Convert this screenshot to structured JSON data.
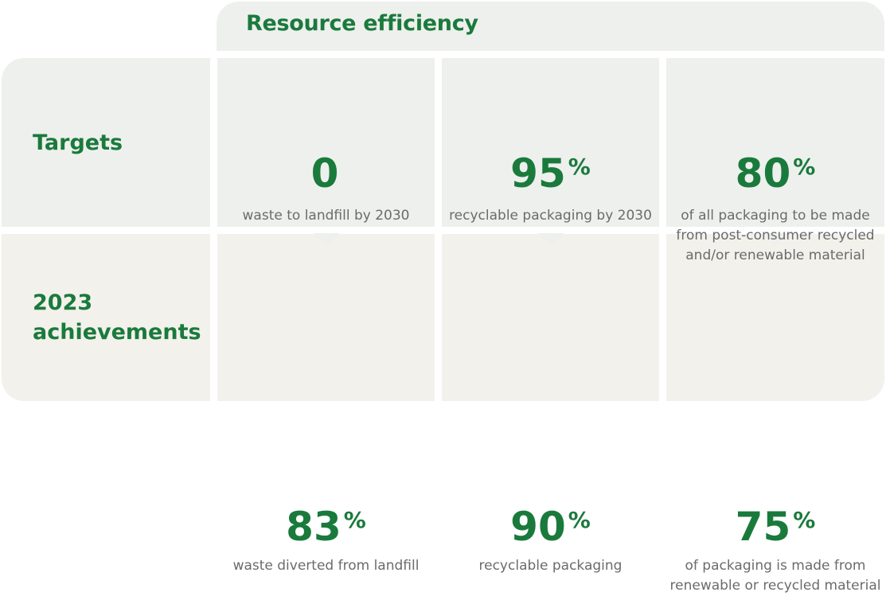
{
  "header": {
    "title": "Resource efficiency"
  },
  "rows": {
    "targets_label": "Targets",
    "achievements_label_line1": "2023",
    "achievements_label_line2": "achievements"
  },
  "targets": [
    {
      "value": "0",
      "unit": "",
      "description": "waste to landfill by 2030"
    },
    {
      "value": "95",
      "unit": "%",
      "description": "recyclable packaging by 2030"
    },
    {
      "value": "80",
      "unit": "%",
      "description": "of all packaging to be made from post-consumer recycled and/or renewable material"
    }
  ],
  "achievements": [
    {
      "value": "83",
      "unit": "%",
      "description": "waste diverted from landfill"
    },
    {
      "value": "90",
      "unit": "%",
      "description": "recyclable packaging"
    },
    {
      "value": "75",
      "unit": "%",
      "description": "of packaging is made from renewable or recycled material"
    }
  ],
  "colors": {
    "accent_green": "#1a7a3c",
    "targets_background": "#eef0ed",
    "achievements_background": "#f3f1ec",
    "description_text": "#6b6b6b"
  }
}
